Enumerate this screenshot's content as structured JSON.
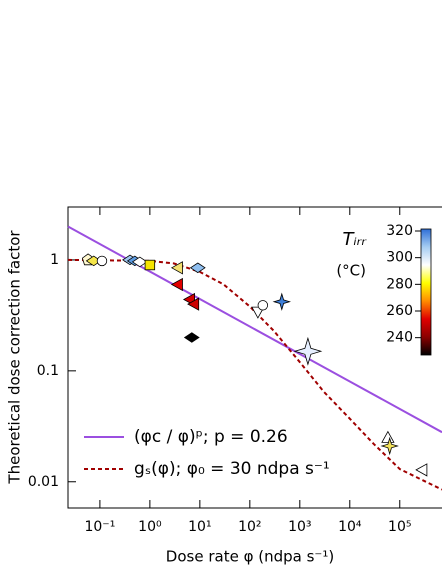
{
  "chart_data": {
    "type": "scatter",
    "xlabel": "Dose rate φ (ndpa s⁻¹)",
    "ylabel": "Theoretical dose correction factor",
    "xscale": "log",
    "yscale": "log",
    "xlim": [
      0.023,
      700000
    ],
    "ylim": [
      0.0058,
      3
    ],
    "xticks": [
      {
        "value": 0.1,
        "label": "10⁻¹"
      },
      {
        "value": 1,
        "label": "10⁰"
      },
      {
        "value": 10,
        "label": "10¹"
      },
      {
        "value": 100,
        "label": "10²"
      },
      {
        "value": 1000,
        "label": "10³"
      },
      {
        "value": 10000,
        "label": "10⁴"
      },
      {
        "value": 100000,
        "label": "10⁵"
      }
    ],
    "yticks": [
      0.01,
      0.1,
      1
    ],
    "points": {
      "x": [
        0.058,
        0.075,
        0.11,
        0.4,
        0.5,
        0.63,
        1.0,
        3.6,
        9.1,
        3.6,
        6.3,
        7.6,
        6.9,
        145,
        182,
        437,
        1450,
        58000,
        63000,
        280000
      ],
      "y": [
        1.0,
        0.98,
        0.98,
        1.0,
        0.98,
        0.96,
        0.9,
        0.85,
        0.85,
        0.6,
        0.44,
        0.4,
        0.2,
        0.34,
        0.39,
        0.42,
        0.15,
        0.025,
        0.021,
        0.0128
      ],
      "colors": [
        "#fff8d0",
        "#f5e64a",
        "#ffffff",
        "#9ec4ee",
        "#5d9be0",
        "#ffffff",
        "#f5e400",
        "#f3e070",
        "#8fbff0",
        "#e00000",
        "#d40000",
        "#cc0000",
        "#000000",
        "#ffffff",
        "#ffffff",
        "#3f7fd8",
        "#e6efff",
        "#ffffff",
        "#f3e25a",
        "#ffffff"
      ],
      "markers": [
        "pentagon",
        "diamond",
        "circle",
        "diamond",
        "diamond",
        "diamond",
        "square",
        "triangle-left",
        "diamond",
        "triangle-left",
        "triangle-left",
        "triangle-left",
        "diamond",
        "triangle-down",
        "circle",
        "star",
        "star",
        "triangle-up",
        "star",
        "triangle-left"
      ]
    },
    "lines": [
      {
        "name": "(φc / φ)ᵖ; p = 0.26",
        "color": "#9b4fe0",
        "dashed": false,
        "x": [
          0.023,
          700000
        ],
        "values": [
          2.0,
          0.028
        ]
      },
      {
        "name": "gₛ(φ); φ₀ = 30 ndpa s⁻¹",
        "color": "#a00000",
        "dashed": true,
        "x": [
          0.023,
          1,
          3,
          10,
          30,
          100,
          300,
          1000,
          3000,
          10000,
          30000,
          100000,
          700000
        ],
        "values": [
          1.0,
          0.98,
          0.93,
          0.78,
          0.6,
          0.38,
          0.23,
          0.12,
          0.065,
          0.037,
          0.022,
          0.013,
          0.0085
        ]
      }
    ],
    "colorbar": {
      "title": "Tᵢᵣᵣ",
      "unit": "(°C)",
      "lim": [
        227,
        321.5
      ],
      "ticks": [
        240,
        260,
        280,
        300,
        320
      ],
      "colormap": [
        "#000000",
        "#8b0000",
        "#e00000",
        "#ff8c00",
        "#ffff00",
        "#ffffff",
        "#a6cdf2",
        "#2f6fd6"
      ]
    }
  }
}
